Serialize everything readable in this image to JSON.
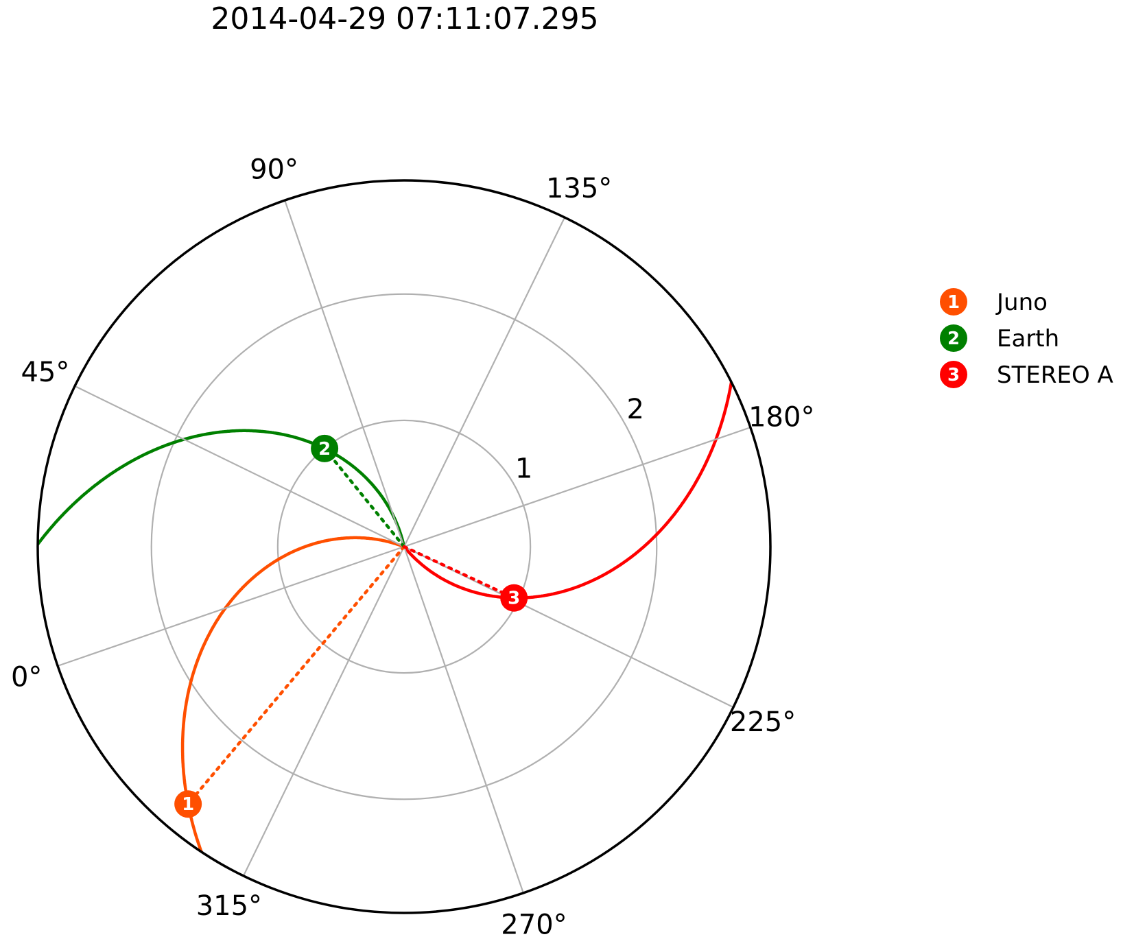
{
  "chart_data": {
    "type": "polar",
    "title": "2014-04-29 07:11:07.295",
    "theta_ticks": [
      "0°",
      "45°",
      "90°",
      "135°",
      "180°",
      "225°",
      "270°",
      "315°"
    ],
    "r_ticks": [
      "1",
      "2"
    ],
    "rlim": [
      0,
      2.9
    ],
    "grid": true,
    "legend_position": "right",
    "series": [
      {
        "marker": "1",
        "name": "Juno",
        "color": "#ff4f00",
        "r": 2.66,
        "theta_deg": 329
      },
      {
        "marker": "2",
        "name": "Earth",
        "color": "#008000",
        "r": 1.0,
        "theta_deg": 70
      },
      {
        "marker": "3",
        "name": "STEREO A",
        "color": "#ff0000",
        "r": 0.96,
        "theta_deg": 224
      }
    ]
  }
}
